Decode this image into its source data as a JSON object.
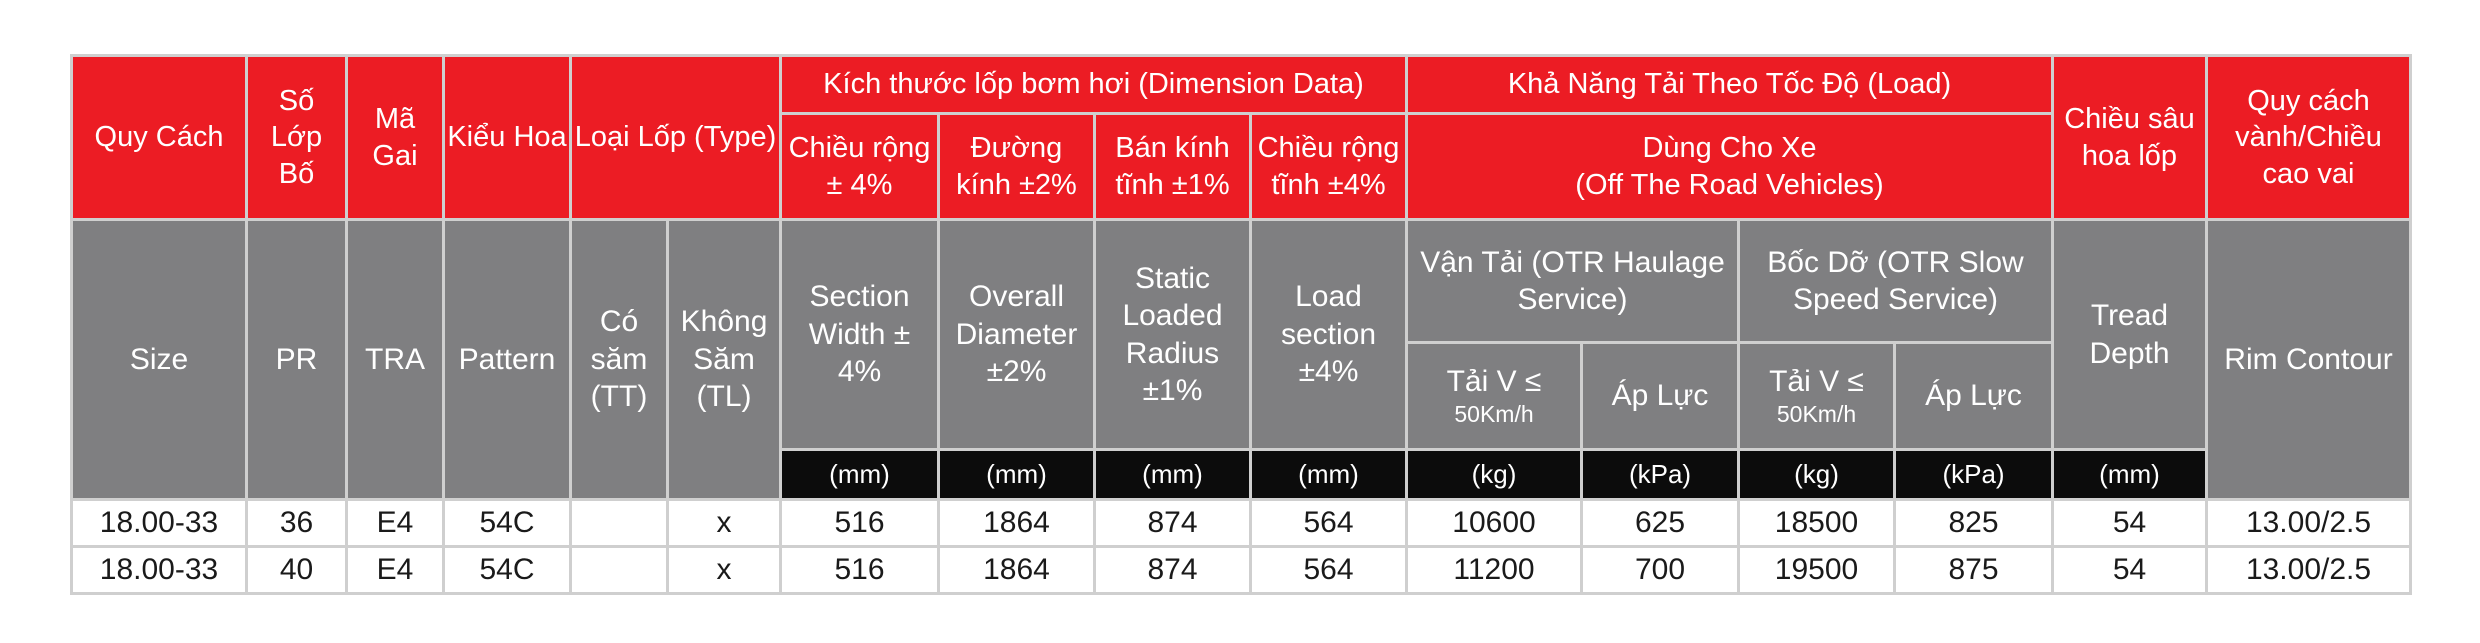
{
  "header_vi": {
    "size": "Quy Cách",
    "ply": "Số Lớp Bố",
    "tra": "Mã Gai",
    "pattern": "Kiểu Hoa",
    "type": "Loại Lốp (Type)",
    "dimension": "Kích thước lốp bơm hơi (Dimension Data)",
    "load": "Khả Năng Tải Theo Tốc Độ (Load)",
    "tread": "Chiều sâu hoa lốp",
    "rim": "Quy cách vành/Chiều cao vai",
    "section_width": "Chiều rộng ± 4%",
    "overall_diameter": "Đường kính ±2%",
    "static_radius": "Bán kính tĩnh ±1%",
    "load_section": "Chiều rộng tĩnh ±4%",
    "vehicle_line1": "Dùng Cho Xe",
    "vehicle_line2": "(Off The Road Vehicles)"
  },
  "header_en": {
    "size": "Size",
    "ply": "PR",
    "tra": "TRA",
    "pattern": "Pattern",
    "tube": "Có săm (TT)",
    "tubeless": "Không Săm (TL)",
    "section_width": "Section Width ± 4%",
    "overall_diameter": "Overall Diameter ±2%",
    "static_radius": "Static Loaded Radius ±1%",
    "load_section": "Load section ±4%",
    "haulage": "Vận Tải (OTR Haulage Service)",
    "slow_speed": "Bốc Dỡ (OTR Slow Speed Service)",
    "load_v": "Tải V ≤",
    "speed": "50Km/h",
    "pressure": "Áp Lực",
    "tread": "Tread Depth",
    "rim": "Rim Contour"
  },
  "units": [
    "(mm)",
    "(mm)",
    "(mm)",
    "(mm)",
    "(kg)",
    "(kPa)",
    "(kg)",
    "(kPa)",
    "(mm)"
  ],
  "rows": [
    [
      "18.00-33",
      "36",
      "E4",
      "54C",
      "",
      "x",
      "516",
      "1864",
      "874",
      "564",
      "10600",
      "625",
      "18500",
      "825",
      "54",
      "13.00/2.5"
    ],
    [
      "18.00-33",
      "40",
      "E4",
      "54C",
      "",
      "x",
      "516",
      "1864",
      "874",
      "564",
      "11200",
      "700",
      "19500",
      "875",
      "54",
      "13.00/2.5"
    ]
  ]
}
